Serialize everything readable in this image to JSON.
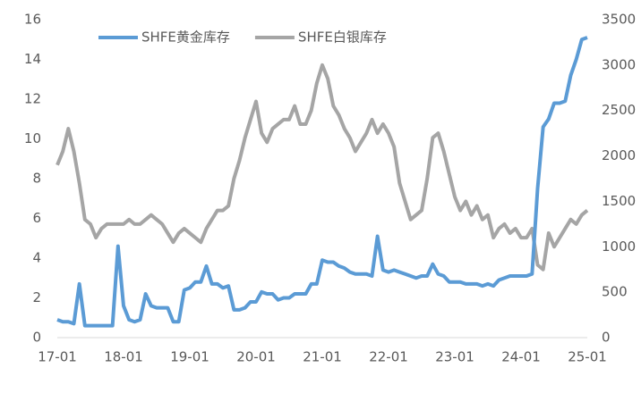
{
  "chart_data": {
    "type": "line",
    "categories": [
      "17-01",
      null,
      null,
      null,
      null,
      null,
      null,
      null,
      null,
      null,
      null,
      null,
      "18-01",
      null,
      null,
      null,
      null,
      null,
      null,
      null,
      null,
      null,
      null,
      null,
      "19-01",
      null,
      null,
      null,
      null,
      null,
      null,
      null,
      null,
      null,
      null,
      null,
      "20-01",
      null,
      null,
      null,
      null,
      null,
      null,
      null,
      null,
      null,
      null,
      null,
      "21-01",
      null,
      null,
      null,
      null,
      null,
      null,
      null,
      null,
      null,
      null,
      null,
      "22-01",
      null,
      null,
      null,
      null,
      null,
      null,
      null,
      null,
      null,
      null,
      null,
      "23-01",
      null,
      null,
      null,
      null,
      null,
      null,
      null,
      null,
      null,
      null,
      null,
      "24-01",
      null,
      null,
      null,
      null,
      null,
      null,
      null,
      null,
      null,
      null,
      null,
      "25-01"
    ],
    "series": [
      {
        "name": "SHFE黄金库存",
        "color": "#5b9bd5",
        "axis": "y",
        "values": [
          0.9,
          0.8,
          0.8,
          0.7,
          2.7,
          0.6,
          0.6,
          0.6,
          0.6,
          0.6,
          0.6,
          4.6,
          1.6,
          0.9,
          0.8,
          0.9,
          2.2,
          1.6,
          1.5,
          1.5,
          1.5,
          0.8,
          0.8,
          2.4,
          2.5,
          2.8,
          2.8,
          3.6,
          2.7,
          2.7,
          2.5,
          2.6,
          1.4,
          1.4,
          1.5,
          1.8,
          1.8,
          2.3,
          2.2,
          2.2,
          1.9,
          2.0,
          2.0,
          2.2,
          2.2,
          2.2,
          2.7,
          2.7,
          3.9,
          3.8,
          3.8,
          3.6,
          3.5,
          3.3,
          3.2,
          3.2,
          3.2,
          3.1,
          5.1,
          3.4,
          3.3,
          3.4,
          3.3,
          3.2,
          3.1,
          3.0,
          3.1,
          3.1,
          3.7,
          3.2,
          3.1,
          2.8,
          2.8,
          2.8,
          2.7,
          2.7,
          2.7,
          2.6,
          2.7,
          2.6,
          2.9,
          3.0,
          3.1,
          3.1,
          3.1,
          3.1,
          3.2,
          7.5,
          10.6,
          11.0,
          11.8,
          11.8,
          11.9,
          13.2,
          14.0,
          15.0,
          15.1
        ]
      },
      {
        "name": "SHFE白银库存",
        "color": "#a5a5a5",
        "axis": "y2",
        "values": [
          1900,
          2050,
          2300,
          2050,
          1700,
          1300,
          1250,
          1100,
          1200,
          1250,
          1250,
          1250,
          1250,
          1300,
          1250,
          1250,
          1300,
          1350,
          1300,
          1250,
          1150,
          1050,
          1150,
          1200,
          1150,
          1100,
          1050,
          1200,
          1300,
          1400,
          1400,
          1450,
          1750,
          1950,
          2200,
          2400,
          2600,
          2250,
          2150,
          2300,
          2350,
          2400,
          2400,
          2550,
          2350,
          2350,
          2500,
          2800,
          3000,
          2850,
          2550,
          2450,
          2300,
          2200,
          2050,
          2150,
          2250,
          2400,
          2250,
          2350,
          2250,
          2100,
          1700,
          1500,
          1300,
          1350,
          1400,
          1750,
          2200,
          2250,
          2050,
          1800,
          1550,
          1400,
          1500,
          1350,
          1450,
          1300,
          1350,
          1100,
          1200,
          1250,
          1150,
          1200,
          1100,
          1100,
          1200,
          800,
          750,
          1150,
          1000,
          1100,
          1200,
          1300,
          1250,
          1350,
          1400
        ]
      }
    ],
    "ylim": [
      0,
      16
    ],
    "yticks": [
      0,
      2,
      4,
      6,
      8,
      10,
      12,
      14,
      16
    ],
    "y2lim": [
      0,
      3500
    ],
    "y2ticks": [
      0,
      500,
      1000,
      1500,
      2000,
      2500,
      3000,
      3500
    ],
    "legend": "top"
  }
}
